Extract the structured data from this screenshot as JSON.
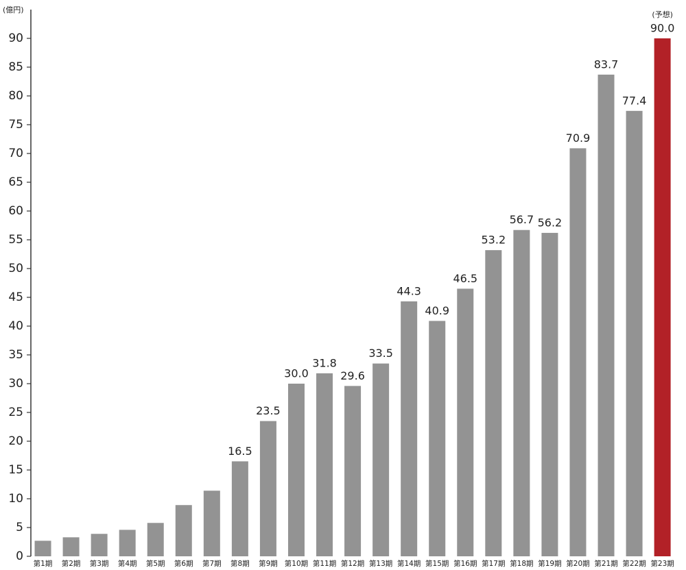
{
  "chart_data": {
    "type": "bar",
    "y_label": "(億円)",
    "annotation": "(予想)",
    "categories": [
      "第1期",
      "第2期",
      "第3期",
      "第4期",
      "第5期",
      "第6期",
      "第7期",
      "第8期",
      "第9期",
      "第10期",
      "第11期",
      "第12期",
      "第13期",
      "第14期",
      "第15期",
      "第16期",
      "第17期",
      "第18期",
      "第19期",
      "第20期",
      "第21期",
      "第22期",
      "第23期"
    ],
    "values": [
      2.7,
      3.3,
      3.9,
      4.6,
      5.8,
      8.9,
      11.4,
      16.5,
      23.5,
      30,
      31.8,
      29.6,
      33.5,
      44.3,
      40.9,
      46.5,
      53.2,
      56.7,
      56.2,
      70.9,
      83.7,
      77.4,
      90
    ],
    "value_labels": [
      null,
      null,
      null,
      null,
      null,
      null,
      null,
      "16.5",
      "23.5",
      "30.0",
      "31.8",
      "29.6",
      "33.5",
      "44.3",
      "40.9",
      "46.5",
      "53.2",
      "56.7",
      "56.2",
      "70.9",
      "83.7",
      "77.4",
      "90.0"
    ],
    "colors": [
      "#939393",
      "#939393",
      "#939393",
      "#939393",
      "#939393",
      "#939393",
      "#939393",
      "#939393",
      "#939393",
      "#939393",
      "#939393",
      "#939393",
      "#939393",
      "#939393",
      "#939393",
      "#939393",
      "#939393",
      "#939393",
      "#939393",
      "#939393",
      "#939393",
      "#939393",
      "#b22127"
    ],
    "ylim": [
      0,
      95
    ],
    "yticks": [
      0,
      5,
      10,
      15,
      20,
      25,
      30,
      35,
      40,
      45,
      50,
      55,
      60,
      65,
      70,
      75,
      80,
      85,
      90
    ],
    "grid": false
  }
}
